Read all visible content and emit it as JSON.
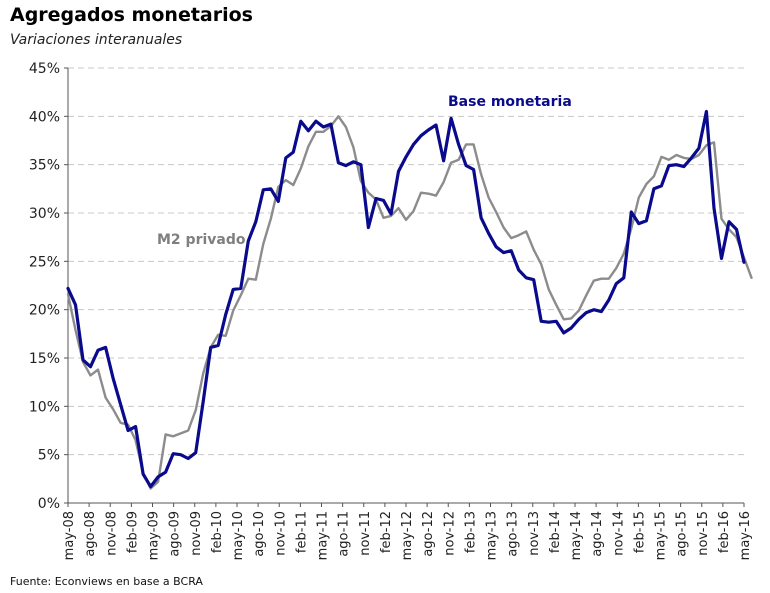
{
  "chart_data": {
    "type": "line",
    "title": "Agregados monetarios",
    "subtitle": "Variaciones interanuales",
    "source": "Fuente: Econviews en base a BCRA",
    "xlabel": "",
    "ylabel": "",
    "ylim": [
      0,
      45
    ],
    "ytick_values": [
      0,
      5,
      10,
      15,
      20,
      25,
      30,
      35,
      40,
      45
    ],
    "ytick_labels": [
      "0%",
      "5%",
      "10%",
      "15%",
      "20%",
      "25%",
      "30%",
      "35%",
      "40%",
      "45%"
    ],
    "xtick_labels": [
      "may-08",
      "ago-08",
      "nov-08",
      "feb-09",
      "may-09",
      "ago-09",
      "nov-09",
      "feb-10",
      "may-10",
      "ago-10",
      "nov-10",
      "feb-11",
      "may-11",
      "ago-11",
      "nov-11",
      "feb-12",
      "may-12",
      "ago-12",
      "nov-12",
      "feb-13",
      "may-13",
      "ago-13",
      "nov-13",
      "feb-14",
      "may-14",
      "ago-14",
      "nov-14",
      "feb-15",
      "may-15",
      "ago-15",
      "nov-15",
      "feb-16",
      "may-16"
    ],
    "grid": "horizontal dashed",
    "series": [
      {
        "name": "Base monetaria",
        "color": "#0a0a8c",
        "values": [
          22.2,
          20.5,
          14.8,
          14.1,
          15.8,
          16.1,
          12.9,
          10.2,
          7.5,
          7.9,
          3.0,
          1.7,
          2.7,
          3.2,
          5.1,
          5.0,
          4.6,
          5.2,
          10.5,
          16.1,
          16.3,
          19.5,
          22.1,
          22.2,
          27.1,
          29.1,
          32.4,
          32.5,
          31.2,
          35.7,
          36.3,
          39.5,
          38.5,
          39.5,
          38.9,
          39.2,
          35.2,
          34.9,
          35.3,
          35.0,
          28.5,
          31.5,
          31.3,
          29.9,
          34.3,
          35.8,
          37.1,
          38.0,
          38.6,
          39.1,
          35.4,
          39.8,
          37.1,
          34.9,
          34.5,
          29.5,
          27.9,
          26.5,
          25.9,
          26.1,
          24.1,
          23.3,
          23.1,
          18.8,
          18.7,
          18.8,
          17.6,
          18.1,
          19.0,
          19.7,
          20.0,
          19.8,
          21.0,
          22.7,
          23.3,
          30.1,
          28.9,
          29.2,
          32.5,
          32.8,
          34.9,
          35.0,
          34.8,
          35.7,
          36.7,
          40.5,
          30.5,
          25.3,
          29.1,
          28.3,
          24.9
        ]
      },
      {
        "name": "M2 privado",
        "color": "#8c8c8c",
        "values": [
          21.6,
          17.9,
          14.6,
          13.2,
          13.8,
          10.9,
          9.7,
          8.3,
          8.1,
          6.5,
          3.1,
          1.5,
          2.2,
          7.1,
          6.9,
          7.2,
          7.5,
          9.6,
          13.4,
          16.1,
          17.4,
          17.3,
          19.9,
          21.5,
          23.2,
          23.1,
          26.8,
          29.4,
          32.7,
          33.4,
          32.9,
          34.6,
          36.9,
          38.4,
          38.4,
          39.0,
          40.0,
          38.9,
          36.8,
          33.3,
          32.1,
          31.4,
          29.5,
          29.7,
          30.5,
          29.3,
          30.2,
          32.1,
          32.0,
          31.8,
          33.2,
          35.2,
          35.5,
          37.1,
          37.1,
          34.0,
          31.6,
          30.1,
          28.5,
          27.4,
          27.7,
          28.1,
          26.2,
          24.7,
          22.1,
          20.5,
          19.0,
          19.1,
          19.9,
          21.5,
          23.0,
          23.2,
          23.2,
          24.3,
          25.8,
          28.4,
          31.6,
          33.0,
          33.8,
          35.8,
          35.5,
          36.0,
          35.7,
          35.6,
          36.0,
          37.0,
          37.3,
          29.4,
          28.3,
          27.5,
          25.4,
          23.3
        ]
      }
    ]
  }
}
